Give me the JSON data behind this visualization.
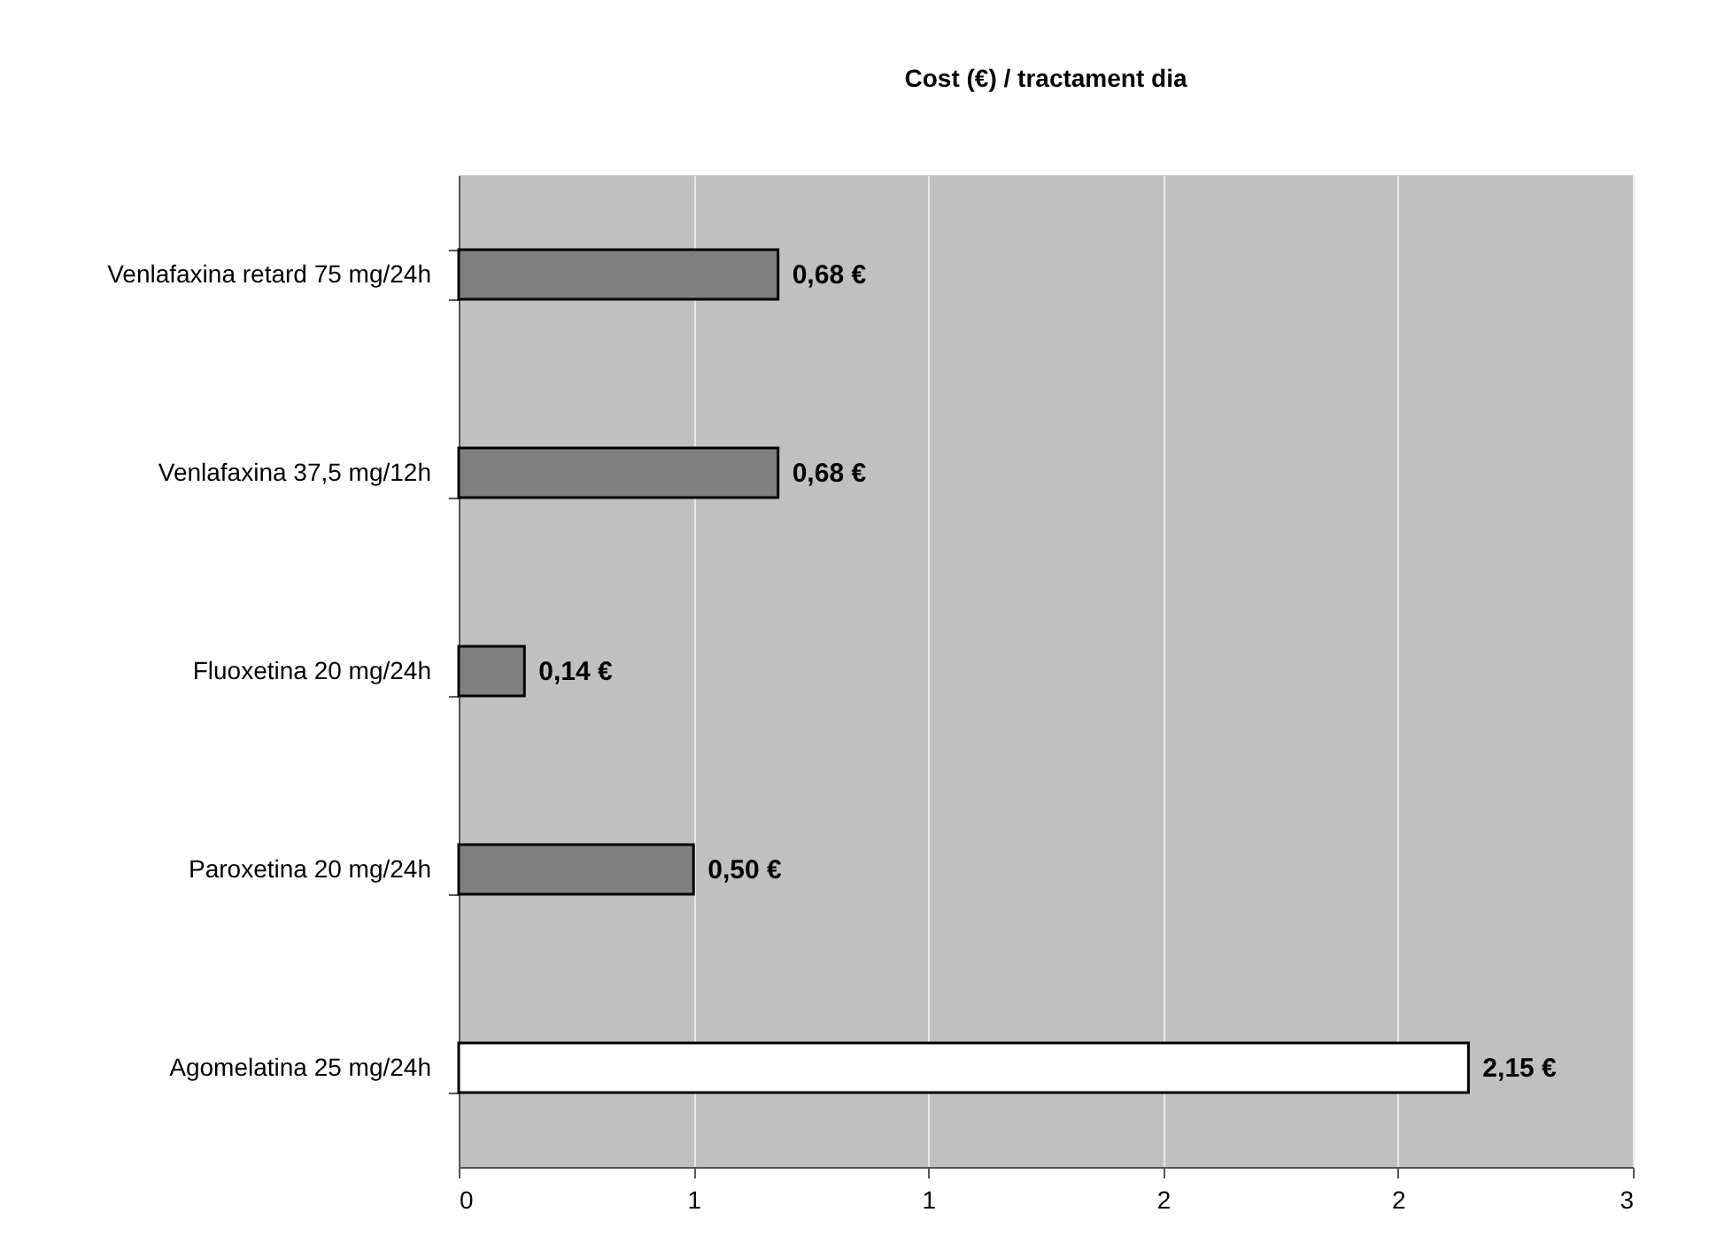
{
  "chart_data": {
    "type": "bar",
    "orientation": "horizontal",
    "title": "Cost (€) / tractament dia",
    "categories": [
      "Venlafaxina retard 75 mg/24h",
      "Venlafaxina 37,5 mg/12h",
      "Fluoxetina 20 mg/24h",
      "Paroxetina 20 mg/24h",
      "Agomelatina 25 mg/24h"
    ],
    "values": [
      0.68,
      0.68,
      0.14,
      0.5,
      2.15
    ],
    "colors": [
      "#808080",
      "#808080",
      "#808080",
      "#808080",
      "#ffffff"
    ],
    "value_labels": [
      "0,68 €",
      "0,68 €",
      "0,14 €",
      "0,50 €",
      "2,15 €"
    ],
    "xlim": [
      0,
      2.5
    ],
    "xticks": [
      0,
      {
        "value": 0.5,
        "label": "1"
      },
      {
        "value": 1,
        "label": "1"
      },
      {
        "value": 1.5,
        "label": "2"
      },
      {
        "value": 2,
        "label": "2"
      },
      {
        "value": 2.5,
        "label": "3"
      }
    ],
    "grid": "x"
  }
}
